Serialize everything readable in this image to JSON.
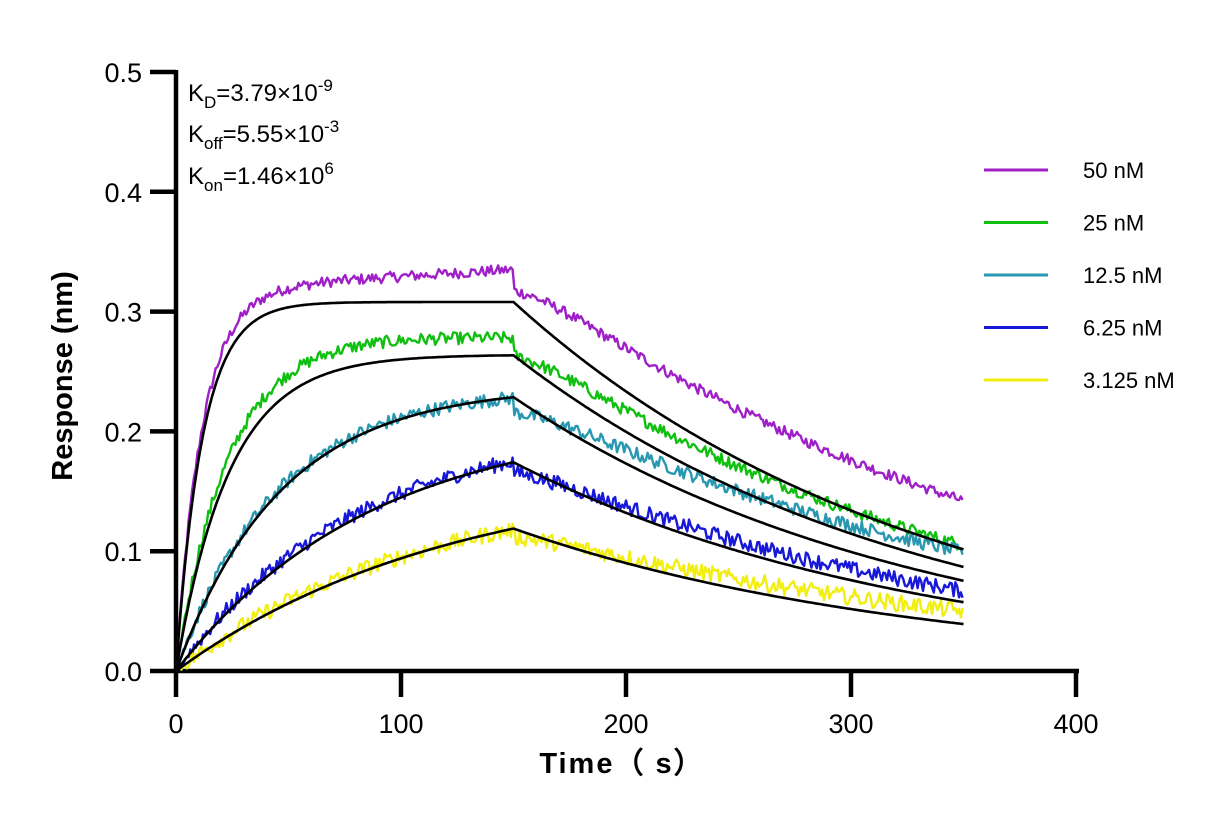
{
  "chart_data": {
    "type": "line",
    "xlabel": "Time（ s）",
    "ylabel": "Response (nm)",
    "xlim": [
      0,
      400
    ],
    "ylim": [
      0,
      0.5
    ],
    "xticks": [
      "0",
      "100",
      "200",
      "300",
      "400"
    ],
    "yticks": [
      "0.0",
      "0.1",
      "0.2",
      "0.3",
      "0.4",
      "0.5"
    ],
    "grid": false,
    "legend_position": "right",
    "kinetics": {
      "kd": {
        "sym": "K",
        "sub": "D",
        "val": "=3.79×10",
        "exp": "-9"
      },
      "koff": {
        "sym": "K",
        "sub": "off",
        "val": "=5.55×10",
        "exp": "-3"
      },
      "kon": {
        "sym": "K",
        "sub": "on",
        "val": "=1.46×10",
        "exp": "6"
      }
    },
    "association_end": 150,
    "dissociation_end": 350,
    "series": [
      {
        "name": "50 nM",
        "color": "#a020c8",
        "fit_plateau": 0.308,
        "rate": 0.085,
        "data_plateau": 0.318,
        "data_peak": 0.335,
        "data_end": 0.148
      },
      {
        "name": "25 nM",
        "color": "#10c010",
        "fit_plateau": 0.264,
        "rate": 0.042,
        "data_plateau": 0.282,
        "data_peak": 0.278,
        "data_end": 0.11
      },
      {
        "name": "12.5 nM",
        "color": "#2898b0",
        "fit_plateau": 0.238,
        "rate": 0.0215,
        "data_plateau": 0.24,
        "data_peak": 0.228,
        "data_end": 0.103
      },
      {
        "name": "6.25 nM",
        "color": "#1818d8",
        "fit_plateau": 0.212,
        "rate": 0.0115,
        "data_plateau": 0.22,
        "data_peak": 0.175,
        "data_end": 0.07
      },
      {
        "name": "3.125 nM",
        "color": "#f2ee10",
        "fit_plateau": 0.168,
        "rate": 0.0082,
        "data_plateau": 0.175,
        "data_peak": 0.118,
        "data_end": 0.052
      }
    ],
    "fit_color": "#000000"
  }
}
